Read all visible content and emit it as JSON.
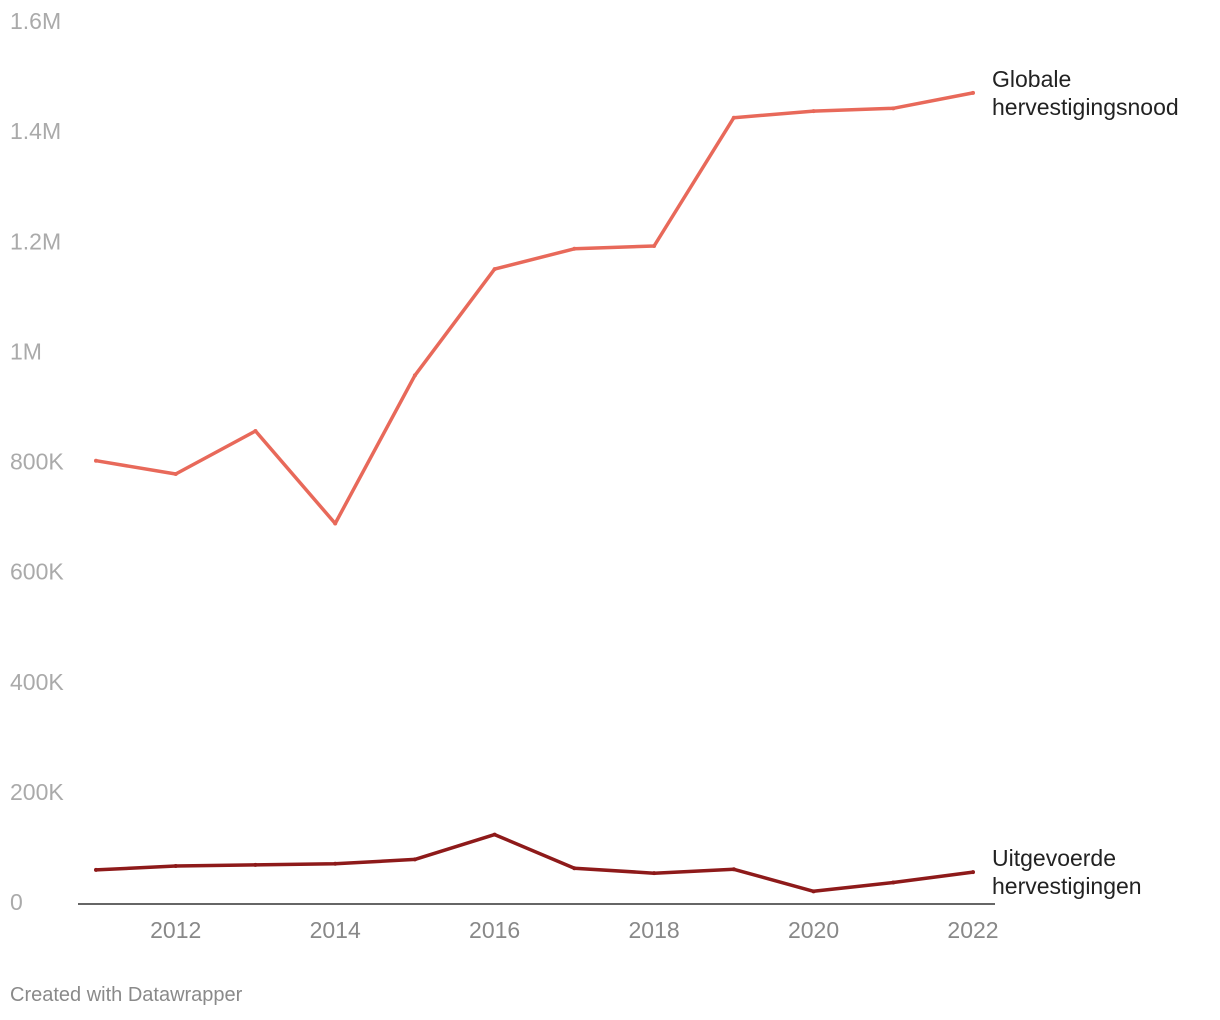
{
  "chart_data": {
    "type": "line",
    "x": [
      2011,
      2012,
      2013,
      2014,
      2015,
      2016,
      2017,
      2018,
      2019,
      2020,
      2021,
      2022
    ],
    "series": [
      {
        "name": "Globale hervestigingsnood",
        "label_lines": [
          "Globale",
          "hervestigingsnood"
        ],
        "color": "#e8695a",
        "values": [
          805000,
          781000,
          859000,
          691000,
          960000,
          1153000,
          1190000,
          1195000,
          1428000,
          1440000,
          1445000,
          1473000
        ]
      },
      {
        "name": "Uitgevoerde hervestigingen",
        "label_lines": [
          "Uitgevoerde",
          "hervestigingen"
        ],
        "color": "#8e1a1a",
        "values": [
          62000,
          69000,
          71000,
          73000,
          81000,
          126000,
          65000,
          56000,
          63000,
          23000,
          39000,
          58000
        ]
      }
    ],
    "ylim": [
      0,
      1600000
    ],
    "yticks": [
      0,
      200000,
      400000,
      600000,
      800000,
      1000000,
      1200000,
      1400000,
      1600000
    ],
    "ytick_labels": [
      "0",
      "200K",
      "400K",
      "600K",
      "800K",
      "1M",
      "1.2M",
      "1.4M",
      "1.6M"
    ],
    "xticks": [
      2012,
      2014,
      2016,
      2018,
      2020,
      2022
    ],
    "xtick_labels": [
      "2012",
      "2014",
      "2016",
      "2018",
      "2020",
      "2022"
    ],
    "grid": false,
    "legend": "inline-right"
  },
  "footer": "Created with Datawrapper"
}
